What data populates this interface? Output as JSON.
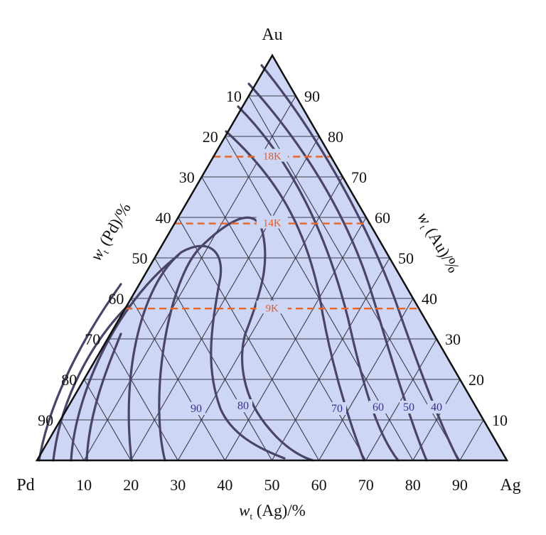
{
  "vertices": {
    "top": "Au",
    "left": "Pd",
    "right": "Ag"
  },
  "axes": {
    "bottom": {
      "title": "w",
      "title_sub": "t",
      "title_rest": " (Ag)/%",
      "ticks": [
        "10",
        "20",
        "30",
        "40",
        "50",
        "60",
        "70",
        "80",
        "90"
      ]
    },
    "left": {
      "title": "w",
      "title_sub": "t",
      "title_rest": " (Pd)/%",
      "ticks": [
        "10",
        "20",
        "30",
        "40",
        "50",
        "60",
        "70",
        "80",
        "90"
      ]
    },
    "right": {
      "title": "w",
      "title_sub": "t",
      "title_rest": " (Au)/%",
      "ticks": [
        "90",
        "80",
        "70",
        "60",
        "50",
        "40",
        "30",
        "20",
        "10"
      ]
    }
  },
  "karat_lines": [
    {
      "label": "18K",
      "au_percent": 75
    },
    {
      "label": "14K",
      "au_percent": 58.5
    },
    {
      "label": "9K",
      "au_percent": 37.5
    }
  ],
  "contour_labels": [
    "90",
    "80",
    "70",
    "60",
    "50",
    "40"
  ],
  "colors": {
    "fill": "#cdd6f5",
    "grid": "#3b3b4a",
    "contour": "#4a4468",
    "karat": "#e8662a",
    "contour_label": "#3a2f8f"
  }
}
